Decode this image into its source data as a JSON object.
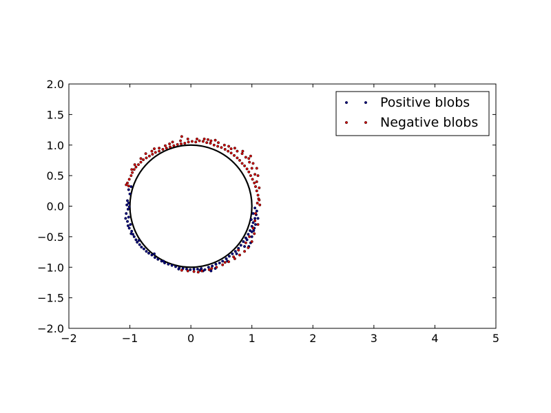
{
  "chart_data": {
    "type": "scatter",
    "title": "",
    "xlabel": "",
    "ylabel": "",
    "xlim": [
      -2,
      5
    ],
    "ylim": [
      -2,
      2
    ],
    "xticks": [
      -2,
      -1,
      0,
      1,
      2,
      3,
      4,
      5
    ],
    "yticks": [
      -2.0,
      -1.5,
      -1.0,
      -0.5,
      0.0,
      0.5,
      1.0,
      1.5,
      2.0
    ],
    "xtick_labels": [
      "−2",
      "−1",
      "0",
      "1",
      "2",
      "3",
      "4",
      "5"
    ],
    "ytick_labels": [
      "−2.0",
      "−1.5",
      "−1.0",
      "−0.5",
      "0.0",
      "0.5",
      "1.0",
      "1.5",
      "2.0"
    ],
    "grid": false,
    "legend_position": "top-right",
    "circle": {
      "center": [
        0,
        0
      ],
      "radius": 1.0,
      "color": "#000000"
    },
    "series": [
      {
        "name": "Positive blobs",
        "color": "#00007f",
        "marker": "dot",
        "points": [
          [
            -1.04,
            0.09
          ],
          [
            -1.02,
            0.05
          ],
          [
            -1.05,
            0.02
          ],
          [
            -1.01,
            -0.01
          ],
          [
            -1.03,
            -0.05
          ],
          [
            -1.06,
            -0.12
          ],
          [
            -1.02,
            -0.18
          ],
          [
            -1.04,
            -0.25
          ],
          [
            -0.99,
            -0.3
          ],
          [
            -1.01,
            -0.36
          ],
          [
            -0.97,
            -0.41
          ],
          [
            -0.95,
            -0.46
          ],
          [
            -0.93,
            -0.5
          ],
          [
            -0.9,
            -0.55
          ],
          [
            -0.88,
            -0.59
          ],
          [
            -0.84,
            -0.63
          ],
          [
            -0.81,
            -0.67
          ],
          [
            -0.77,
            -0.7
          ],
          [
            -0.73,
            -0.74
          ],
          [
            -0.69,
            -0.77
          ],
          [
            -0.64,
            -0.8
          ],
          [
            -0.59,
            -0.84
          ],
          [
            -0.54,
            -0.87
          ],
          [
            -0.48,
            -0.9
          ],
          [
            -0.43,
            -0.93
          ],
          [
            -0.37,
            -0.95
          ],
          [
            -0.31,
            -0.97
          ],
          [
            -0.25,
            -0.99
          ],
          [
            -0.19,
            -1.01
          ],
          [
            -0.13,
            -1.02
          ],
          [
            -0.07,
            -1.03
          ],
          [
            -0.01,
            -1.04
          ],
          [
            0.05,
            -1.03
          ],
          [
            0.11,
            -1.03
          ],
          [
            0.17,
            -1.02
          ],
          [
            0.23,
            -1.04
          ],
          [
            0.29,
            -1.0
          ],
          [
            0.35,
            -0.98
          ],
          [
            0.41,
            -0.95
          ],
          [
            0.47,
            -0.93
          ],
          [
            0.52,
            -0.9
          ],
          [
            0.58,
            -0.86
          ],
          [
            0.63,
            -0.82
          ],
          [
            0.68,
            -0.78
          ],
          [
            0.73,
            -0.74
          ],
          [
            0.78,
            -0.69
          ],
          [
            0.82,
            -0.64
          ],
          [
            0.86,
            -0.58
          ],
          [
            0.9,
            -0.52
          ],
          [
            0.94,
            -0.46
          ],
          [
            0.97,
            -0.4
          ],
          [
            1.0,
            -0.33
          ],
          [
            1.02,
            -0.27
          ],
          [
            1.05,
            -0.2
          ],
          [
            1.07,
            -0.14
          ],
          [
            1.08,
            -0.08
          ],
          [
            1.05,
            -0.03
          ],
          [
            1.1,
            -0.2
          ],
          [
            1.06,
            -0.3
          ],
          [
            1.03,
            -0.4
          ],
          [
            1.0,
            -0.5
          ],
          [
            0.98,
            -0.6
          ],
          [
            0.95,
            -0.66
          ],
          [
            1.02,
            -0.12
          ],
          [
            0.99,
            -0.22
          ],
          [
            -1.07,
            -0.2
          ],
          [
            -1.03,
            -0.32
          ],
          [
            -0.98,
            -0.45
          ],
          [
            -0.45,
            -0.9
          ],
          [
            0.2,
            -1.06
          ],
          [
            0.4,
            -1.02
          ],
          [
            0.6,
            -0.9
          ],
          [
            0.75,
            -0.78
          ],
          [
            0.88,
            -0.66
          ],
          [
            -0.6,
            -0.78
          ],
          [
            -0.85,
            -0.56
          ],
          [
            -1.0,
            0.2
          ],
          [
            -1.02,
            0.27
          ],
          [
            -0.98,
            0.32
          ],
          [
            0.92,
            -0.55
          ],
          [
            1.0,
            -0.42
          ],
          [
            1.04,
            -0.36
          ],
          [
            0.15,
            -1.05
          ],
          [
            -0.2,
            -1.03
          ],
          [
            0.33,
            -1.06
          ]
        ]
      },
      {
        "name": "Negative blobs",
        "color": "#cc0000",
        "marker": "dot",
        "points": [
          [
            -1.02,
            0.33
          ],
          [
            -1.04,
            0.38
          ],
          [
            -1.01,
            0.44
          ],
          [
            -0.98,
            0.5
          ],
          [
            -0.96,
            0.55
          ],
          [
            -0.93,
            0.6
          ],
          [
            -0.9,
            0.64
          ],
          [
            -0.86,
            0.68
          ],
          [
            -0.82,
            0.72
          ],
          [
            -0.78,
            0.76
          ],
          [
            -0.73,
            0.79
          ],
          [
            -0.68,
            0.82
          ],
          [
            -0.63,
            0.85
          ],
          [
            -0.58,
            0.88
          ],
          [
            -0.52,
            0.9
          ],
          [
            -0.46,
            0.93
          ],
          [
            -0.4,
            0.95
          ],
          [
            -0.34,
            0.97
          ],
          [
            -0.28,
            0.99
          ],
          [
            -0.22,
            1.01
          ],
          [
            -0.16,
            1.02
          ],
          [
            -0.1,
            1.03
          ],
          [
            -0.04,
            1.05
          ],
          [
            0.02,
            1.06
          ],
          [
            0.08,
            1.05
          ],
          [
            0.14,
            1.07
          ],
          [
            0.2,
            1.06
          ],
          [
            0.26,
            1.04
          ],
          [
            0.32,
            1.03
          ],
          [
            0.38,
            1.0
          ],
          [
            0.44,
            0.98
          ],
          [
            0.5,
            0.96
          ],
          [
            0.56,
            0.93
          ],
          [
            0.61,
            0.9
          ],
          [
            0.66,
            0.87
          ],
          [
            0.71,
            0.83
          ],
          [
            0.76,
            0.79
          ],
          [
            0.8,
            0.75
          ],
          [
            0.84,
            0.7
          ],
          [
            0.88,
            0.66
          ],
          [
            0.92,
            0.61
          ],
          [
            0.95,
            0.56
          ],
          [
            0.98,
            0.5
          ],
          [
            1.01,
            0.44
          ],
          [
            1.04,
            0.38
          ],
          [
            1.06,
            0.32
          ],
          [
            1.08,
            0.25
          ],
          [
            1.1,
            0.18
          ],
          [
            1.11,
            0.12
          ],
          [
            1.09,
            0.05
          ],
          [
            1.12,
            0.1
          ],
          [
            1.08,
            0.4
          ],
          [
            1.05,
            0.52
          ],
          [
            1.0,
            0.62
          ],
          [
            0.96,
            0.72
          ],
          [
            0.9,
            0.8
          ],
          [
            0.84,
            0.86
          ],
          [
            0.76,
            0.9
          ],
          [
            0.66,
            0.94
          ],
          [
            0.55,
            1.0
          ],
          [
            0.45,
            1.04
          ],
          [
            0.33,
            1.07
          ],
          [
            0.22,
            1.1
          ],
          [
            0.1,
            1.1
          ],
          [
            -0.05,
            1.1
          ],
          [
            -0.17,
            1.07
          ],
          [
            -0.3,
            1.05
          ],
          [
            -0.42,
            0.99
          ],
          [
            -0.52,
            0.95
          ],
          [
            -0.64,
            0.9
          ],
          [
            -0.74,
            0.86
          ],
          [
            -0.82,
            0.78
          ],
          [
            -0.92,
            0.68
          ],
          [
            -0.97,
            0.6
          ],
          [
            -1.06,
            0.35
          ],
          [
            -0.15,
            1.14
          ],
          [
            0.28,
            1.09
          ],
          [
            0.62,
            0.98
          ],
          [
            0.98,
            0.82
          ],
          [
            1.02,
            0.7
          ],
          [
            1.08,
            0.62
          ],
          [
            1.1,
            0.5
          ],
          [
            1.12,
            0.3
          ],
          [
            1.06,
            -0.12
          ],
          [
            1.1,
            -0.3
          ],
          [
            1.04,
            -0.45
          ],
          [
            1.0,
            -0.58
          ],
          [
            0.94,
            -0.68
          ],
          [
            0.88,
            -0.74
          ],
          [
            0.8,
            -0.8
          ],
          [
            0.72,
            -0.86
          ],
          [
            0.62,
            -0.91
          ],
          [
            0.52,
            -0.96
          ],
          [
            0.42,
            -1.0
          ],
          [
            0.3,
            -1.04
          ],
          [
            0.18,
            -1.06
          ],
          [
            0.05,
            -1.07
          ],
          [
            -0.05,
            -1.06
          ],
          [
            -0.15,
            -1.05
          ],
          [
            0.78,
            -0.72
          ],
          [
            0.9,
            -0.6
          ],
          [
            0.96,
            -0.5
          ],
          [
            1.02,
            -0.36
          ],
          [
            1.05,
            -0.24
          ],
          [
            1.13,
            0.02
          ],
          [
            0.7,
            -0.83
          ],
          [
            0.56,
            -0.92
          ],
          [
            0.34,
            -1.02
          ],
          [
            0.12,
            -1.08
          ],
          [
            0.95,
            0.78
          ],
          [
            0.85,
            0.9
          ],
          [
            0.72,
            0.95
          ],
          [
            0.4,
            1.08
          ],
          [
            -0.35,
            1.02
          ],
          [
            -0.6,
            0.94
          ]
        ]
      }
    ]
  }
}
